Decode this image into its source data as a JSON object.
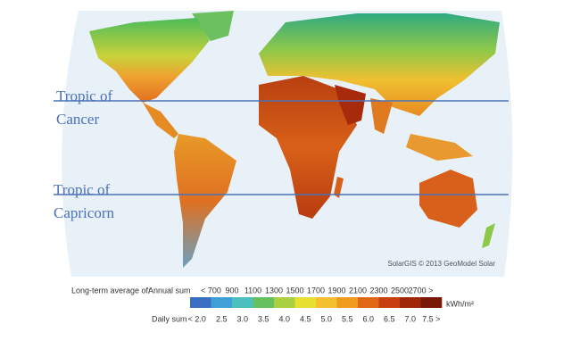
{
  "map_labels": {
    "tropic_of_cancer": [
      "Tropic of",
      "Cancer"
    ],
    "tropic_of_capricorn": [
      "Tropic of",
      "Capricorn"
    ]
  },
  "credit": "SolarGIS © 2013 GeoModel Solar",
  "legend": {
    "caption": "Long-term average of:",
    "annual": {
      "label": "Annual sum",
      "ticks": [
        "< 700",
        "900",
        "1100",
        "1300",
        "1500",
        "1700",
        "1900",
        "2100",
        "2300",
        "2500",
        "2700 >"
      ]
    },
    "unit": "kWh/m²",
    "daily": {
      "label": "Daily sum",
      "ticks": [
        "< 2.0",
        "2.5",
        "3.0",
        "3.5",
        "4.0",
        "4.5",
        "5.0",
        "5.5",
        "6.0",
        "6.5",
        "7.0",
        "7.5 >"
      ]
    }
  }
}
